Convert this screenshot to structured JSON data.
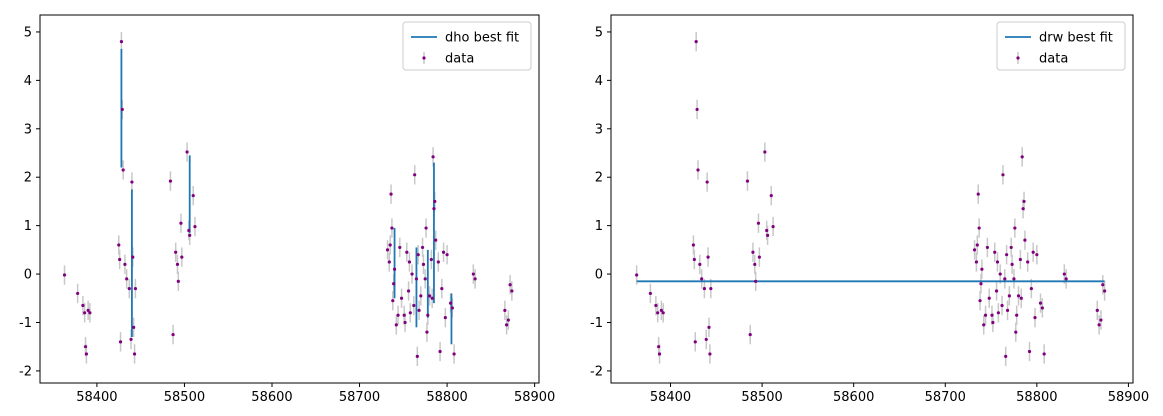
{
  "figure": {
    "background": "#ffffff"
  },
  "chart_data": [
    {
      "type": "scatter",
      "title": "",
      "xlabel": "",
      "ylabel": "",
      "xlim": [
        58335,
        58905
      ],
      "ylim": [
        -2.25,
        5.35
      ],
      "xticks": [
        58400,
        58500,
        58600,
        58700,
        58800,
        58900
      ],
      "yticks": [
        -2,
        -1,
        0,
        1,
        2,
        3,
        4,
        5
      ],
      "legend": {
        "position": "top-right",
        "entries": [
          "dho best fit",
          "data"
        ]
      },
      "series": [
        {
          "name": "dho best fit",
          "kind": "line",
          "color": "#1f77b4",
          "segments": [
            [
              [
                58428,
                2.2
              ],
              [
                58428,
                4.65
              ]
            ],
            [
              [
                58440,
                -1.3
              ],
              [
                58440,
                1.75
              ]
            ],
            [
              [
                58506,
                0.85
              ],
              [
                58506,
                2.45
              ]
            ],
            [
              [
                58740,
                -0.5
              ],
              [
                58740,
                0.95
              ]
            ],
            [
              [
                58765,
                -1.1
              ],
              [
                58765,
                0.55
              ]
            ],
            [
              [
                58778,
                -0.9
              ],
              [
                58778,
                0.5
              ]
            ],
            [
              [
                58785,
                -0.6
              ],
              [
                58785,
                2.3
              ]
            ],
            [
              [
                58805,
                -1.45
              ],
              [
                58805,
                -0.4
              ]
            ]
          ]
        },
        {
          "name": "data",
          "kind": "errorbar",
          "color": "#800080",
          "errcolor": "#c8c8c8",
          "x": [
            58363,
            58378,
            58384,
            58386,
            58387,
            58388,
            58390,
            58392,
            58425,
            58426,
            58427,
            58428,
            58429,
            58430,
            58432,
            58434,
            58437,
            58439,
            58440,
            58441,
            58442,
            58443,
            58444,
            58484,
            58487,
            58490,
            58492,
            58493,
            58496,
            58497,
            58503,
            58505,
            58506,
            58510,
            58512,
            58732,
            58734,
            58735,
            58736,
            58737,
            58738,
            58739,
            58740,
            58742,
            58744,
            58746,
            58748,
            58751,
            58752,
            58754,
            58756,
            58757,
            58758,
            58760,
            58762,
            58763,
            58765,
            58766,
            58767,
            58768,
            58770,
            58772,
            58773,
            58775,
            58776,
            58777,
            58778,
            58780,
            58782,
            58783,
            58784,
            58785,
            58786,
            58787,
            58790,
            58792,
            58794,
            58796,
            58798,
            58800,
            58804,
            58806,
            58808,
            58830,
            58832,
            58866,
            58868,
            58870,
            58872,
            58874
          ],
          "y": [
            -0.02,
            -0.4,
            -0.65,
            -0.8,
            -1.5,
            -1.65,
            -0.75,
            -0.8,
            0.6,
            0.3,
            -1.4,
            4.8,
            3.4,
            2.15,
            0.2,
            -0.1,
            -0.3,
            -1.35,
            1.9,
            0.35,
            -1.1,
            -1.65,
            -0.3,
            1.92,
            -1.25,
            0.45,
            0.2,
            -0.15,
            1.05,
            0.35,
            2.52,
            0.9,
            0.8,
            1.62,
            0.98,
            0.5,
            0.25,
            0.6,
            1.65,
            0.95,
            -0.55,
            -0.2,
            0.1,
            -1.05,
            -0.85,
            0.55,
            -0.5,
            -0.85,
            -1.0,
            0.45,
            -0.35,
            0.25,
            -0.8,
            0.0,
            -0.65,
            2.05,
            -0.1,
            -1.7,
            0.4,
            -0.75,
            -0.45,
            0.55,
            0.2,
            -0.1,
            0.95,
            -1.2,
            -0.85,
            -0.45,
            0.3,
            -0.5,
            2.42,
            1.35,
            1.5,
            0.7,
            0.25,
            -1.6,
            -0.3,
            0.45,
            -0.9,
            0.4,
            -0.6,
            -0.7,
            -1.65,
            0.0,
            -0.1,
            -0.75,
            -1.05,
            -0.95,
            -0.22,
            -0.35
          ],
          "yerr": 0.2
        }
      ]
    },
    {
      "type": "scatter",
      "title": "",
      "xlabel": "",
      "ylabel": "",
      "xlim": [
        58335,
        58905
      ],
      "ylim": [
        -2.25,
        5.35
      ],
      "xticks": [
        58400,
        58500,
        58600,
        58700,
        58800,
        58900
      ],
      "yticks": [
        -2,
        -1,
        0,
        1,
        2,
        3,
        4,
        5
      ],
      "legend": {
        "position": "top-right",
        "entries": [
          "drw best fit",
          "data"
        ]
      },
      "series": [
        {
          "name": "drw best fit",
          "kind": "line",
          "color": "#1f77b4",
          "segments": [
            [
              [
                58363,
                -0.15
              ],
              [
                58874,
                -0.15
              ]
            ]
          ]
        },
        {
          "name": "data",
          "kind": "errorbar",
          "color": "#800080",
          "errcolor": "#c8c8c8",
          "x": [
            58363,
            58378,
            58384,
            58386,
            58387,
            58388,
            58390,
            58392,
            58425,
            58426,
            58427,
            58428,
            58429,
            58430,
            58432,
            58434,
            58437,
            58439,
            58440,
            58441,
            58442,
            58443,
            58444,
            58484,
            58487,
            58490,
            58492,
            58493,
            58496,
            58497,
            58503,
            58505,
            58506,
            58510,
            58512,
            58732,
            58734,
            58735,
            58736,
            58737,
            58738,
            58739,
            58740,
            58742,
            58744,
            58746,
            58748,
            58751,
            58752,
            58754,
            58756,
            58757,
            58758,
            58760,
            58762,
            58763,
            58765,
            58766,
            58767,
            58768,
            58770,
            58772,
            58773,
            58775,
            58776,
            58777,
            58778,
            58780,
            58782,
            58783,
            58784,
            58785,
            58786,
            58787,
            58790,
            58792,
            58794,
            58796,
            58798,
            58800,
            58804,
            58806,
            58808,
            58830,
            58832,
            58866,
            58868,
            58870,
            58872,
            58874
          ],
          "y": [
            -0.02,
            -0.4,
            -0.65,
            -0.8,
            -1.5,
            -1.65,
            -0.75,
            -0.8,
            0.6,
            0.3,
            -1.4,
            4.8,
            3.4,
            2.15,
            0.2,
            -0.1,
            -0.3,
            -1.35,
            1.9,
            0.35,
            -1.1,
            -1.65,
            -0.3,
            1.92,
            -1.25,
            0.45,
            0.2,
            -0.15,
            1.05,
            0.35,
            2.52,
            0.9,
            0.8,
            1.62,
            0.98,
            0.5,
            0.25,
            0.6,
            1.65,
            0.95,
            -0.55,
            -0.2,
            0.1,
            -1.05,
            -0.85,
            0.55,
            -0.5,
            -0.85,
            -1.0,
            0.45,
            -0.35,
            0.25,
            -0.8,
            0.0,
            -0.65,
            2.05,
            -0.1,
            -1.7,
            0.4,
            -0.75,
            -0.45,
            0.55,
            0.2,
            -0.1,
            0.95,
            -1.2,
            -0.85,
            -0.45,
            0.3,
            -0.5,
            2.42,
            1.35,
            1.5,
            0.7,
            0.25,
            -1.6,
            -0.3,
            0.45,
            -0.9,
            0.4,
            -0.6,
            -0.7,
            -1.65,
            0.0,
            -0.1,
            -0.75,
            -1.05,
            -0.95,
            -0.22,
            -0.35
          ],
          "yerr": 0.2
        }
      ]
    }
  ]
}
